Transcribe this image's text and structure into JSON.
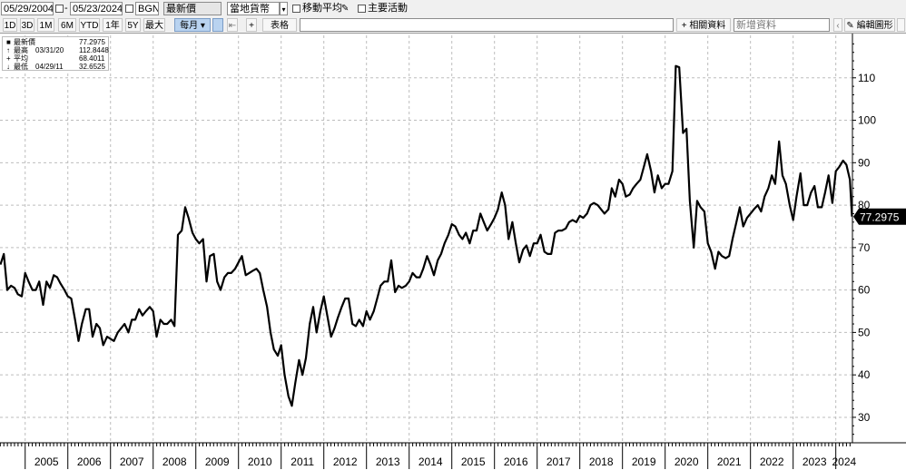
{
  "toolbar": {
    "start_date": "05/29/2004",
    "end_date": "05/23/2024",
    "currency": "BGN",
    "field": "最新價",
    "currency_mode": "當地貨幣",
    "moving_avg_label": "移動平均",
    "key_events_label": "主要活動",
    "periods": [
      "1D",
      "3D",
      "1M",
      "6M",
      "YTD",
      "1年",
      "5Y",
      "最大"
    ],
    "frequency": "每月",
    "table_label": "表格",
    "related_label": "相關資料",
    "new_data_placeholder": "新增資料",
    "edit_chart_label": "編輯圖形",
    "nav_add": "+"
  },
  "legend": [
    {
      "label": "最新價",
      "date": "",
      "value": "77.2975"
    },
    {
      "label": "最高",
      "date": "03/31/20",
      "value": "112.8448"
    },
    {
      "label": "平均",
      "date": "",
      "value": "68.4011"
    },
    {
      "label": "最低",
      "date": "04/29/11",
      "value": "32.6525"
    }
  ],
  "colors": {
    "line": "#000000",
    "grid": "#bdbdbd",
    "accent": "#000000"
  },
  "chart_data": {
    "type": "line",
    "title": "",
    "xlabel": "",
    "ylabel": "",
    "ylim": [
      24,
      120
    ],
    "xlim": [
      2004.41,
      2024.39
    ],
    "y_ticks": [
      30,
      40,
      50,
      60,
      70,
      80,
      90,
      100,
      110
    ],
    "x_tick_labels": [
      "2005",
      "2006",
      "2007",
      "2008",
      "2009",
      "2010",
      "2011",
      "2012",
      "2013",
      "2014",
      "2015",
      "2016",
      "2017",
      "2018",
      "2019",
      "2020",
      "2021",
      "2022",
      "2023",
      "2024"
    ],
    "last_value_label": "77.2975",
    "grid": true,
    "series": [
      {
        "values": [
          [
            2004.42,
            66
          ],
          [
            2004.5,
            68.5
          ],
          [
            2004.58,
            60
          ],
          [
            2004.67,
            61
          ],
          [
            2004.75,
            60.5
          ],
          [
            2004.83,
            59
          ],
          [
            2004.92,
            58.5
          ],
          [
            2005.0,
            64
          ],
          [
            2005.08,
            62
          ],
          [
            2005.17,
            60
          ],
          [
            2005.25,
            60
          ],
          [
            2005.33,
            62
          ],
          [
            2005.42,
            56.5
          ],
          [
            2005.5,
            62
          ],
          [
            2005.58,
            60.5
          ],
          [
            2005.67,
            63.5
          ],
          [
            2005.75,
            63
          ],
          [
            2005.83,
            61.5
          ],
          [
            2005.92,
            60
          ],
          [
            2006.0,
            58.5
          ],
          [
            2006.08,
            58
          ],
          [
            2006.17,
            53
          ],
          [
            2006.25,
            48
          ],
          [
            2006.33,
            52
          ],
          [
            2006.42,
            55.5
          ],
          [
            2006.5,
            55.5
          ],
          [
            2006.58,
            49
          ],
          [
            2006.67,
            52
          ],
          [
            2006.75,
            51
          ],
          [
            2006.83,
            47
          ],
          [
            2006.92,
            49
          ],
          [
            2007.0,
            48.5
          ],
          [
            2007.08,
            48
          ],
          [
            2007.17,
            50
          ],
          [
            2007.25,
            51
          ],
          [
            2007.33,
            52
          ],
          [
            2007.42,
            50
          ],
          [
            2007.5,
            53
          ],
          [
            2007.58,
            53
          ],
          [
            2007.67,
            55.5
          ],
          [
            2007.75,
            54
          ],
          [
            2007.83,
            55
          ],
          [
            2007.92,
            56
          ],
          [
            2008.0,
            55
          ],
          [
            2008.08,
            49
          ],
          [
            2008.17,
            53
          ],
          [
            2008.25,
            52
          ],
          [
            2008.33,
            52
          ],
          [
            2008.42,
            53
          ],
          [
            2008.5,
            51.5
          ],
          [
            2008.58,
            73
          ],
          [
            2008.67,
            74
          ],
          [
            2008.75,
            79.5
          ],
          [
            2008.83,
            77
          ],
          [
            2008.92,
            73.5
          ],
          [
            2009.0,
            72
          ],
          [
            2009.08,
            71
          ],
          [
            2009.17,
            72
          ],
          [
            2009.25,
            62
          ],
          [
            2009.33,
            68
          ],
          [
            2009.42,
            68.5
          ],
          [
            2009.5,
            62
          ],
          [
            2009.58,
            60
          ],
          [
            2009.67,
            63
          ],
          [
            2009.75,
            64
          ],
          [
            2009.83,
            64
          ],
          [
            2009.92,
            65
          ],
          [
            2010.0,
            66.5
          ],
          [
            2010.08,
            68
          ],
          [
            2010.17,
            63.5
          ],
          [
            2010.25,
            64
          ],
          [
            2010.33,
            64.5
          ],
          [
            2010.42,
            65
          ],
          [
            2010.5,
            64
          ],
          [
            2010.58,
            60
          ],
          [
            2010.67,
            56
          ],
          [
            2010.75,
            50
          ],
          [
            2010.83,
            46
          ],
          [
            2010.92,
            44.5
          ],
          [
            2011.0,
            47
          ],
          [
            2011.08,
            40
          ],
          [
            2011.17,
            35
          ],
          [
            2011.25,
            32.7
          ],
          [
            2011.33,
            38
          ],
          [
            2011.42,
            43.5
          ],
          [
            2011.5,
            40
          ],
          [
            2011.58,
            44
          ],
          [
            2011.67,
            52
          ],
          [
            2011.75,
            56
          ],
          [
            2011.83,
            50
          ],
          [
            2011.92,
            55
          ],
          [
            2012.0,
            58.5
          ],
          [
            2012.08,
            54
          ],
          [
            2012.17,
            49
          ],
          [
            2012.25,
            51
          ],
          [
            2012.33,
            53.5
          ],
          [
            2012.42,
            56
          ],
          [
            2012.5,
            58
          ],
          [
            2012.58,
            58
          ],
          [
            2012.67,
            52
          ],
          [
            2012.75,
            51.5
          ],
          [
            2012.83,
            53
          ],
          [
            2012.92,
            51.5
          ],
          [
            2013.0,
            55
          ],
          [
            2013.08,
            53
          ],
          [
            2013.17,
            55
          ],
          [
            2013.25,
            58
          ],
          [
            2013.33,
            61
          ],
          [
            2013.42,
            62
          ],
          [
            2013.5,
            62
          ],
          [
            2013.58,
            67
          ],
          [
            2013.67,
            59.5
          ],
          [
            2013.75,
            61
          ],
          [
            2013.83,
            60.5
          ],
          [
            2013.92,
            61
          ],
          [
            2014.0,
            62
          ],
          [
            2014.08,
            64
          ],
          [
            2014.17,
            63
          ],
          [
            2014.25,
            63
          ],
          [
            2014.33,
            65
          ],
          [
            2014.42,
            68
          ],
          [
            2014.5,
            66
          ],
          [
            2014.58,
            63.5
          ],
          [
            2014.67,
            67
          ],
          [
            2014.75,
            68.5
          ],
          [
            2014.83,
            71
          ],
          [
            2014.92,
            73
          ],
          [
            2015.0,
            75.5
          ],
          [
            2015.08,
            75
          ],
          [
            2015.17,
            73
          ],
          [
            2015.25,
            72
          ],
          [
            2015.33,
            73.5
          ],
          [
            2015.42,
            71
          ],
          [
            2015.5,
            74
          ],
          [
            2015.58,
            74
          ],
          [
            2015.67,
            78
          ],
          [
            2015.75,
            76
          ],
          [
            2015.83,
            74
          ],
          [
            2015.92,
            75.5
          ],
          [
            2016.0,
            77
          ],
          [
            2016.08,
            79
          ],
          [
            2016.17,
            83
          ],
          [
            2016.25,
            80
          ],
          [
            2016.33,
            72
          ],
          [
            2016.42,
            76
          ],
          [
            2016.5,
            71
          ],
          [
            2016.58,
            66.5
          ],
          [
            2016.67,
            69.5
          ],
          [
            2016.75,
            70.5
          ],
          [
            2016.83,
            68
          ],
          [
            2016.92,
            71
          ],
          [
            2017.0,
            71
          ],
          [
            2017.08,
            73
          ],
          [
            2017.17,
            69
          ],
          [
            2017.25,
            68.5
          ],
          [
            2017.33,
            68.5
          ],
          [
            2017.42,
            73.5
          ],
          [
            2017.5,
            74
          ],
          [
            2017.58,
            74
          ],
          [
            2017.67,
            74.5
          ],
          [
            2017.75,
            76
          ],
          [
            2017.83,
            76.5
          ],
          [
            2017.92,
            76
          ],
          [
            2018.0,
            77.5
          ],
          [
            2018.08,
            77
          ],
          [
            2018.17,
            78
          ],
          [
            2018.25,
            80
          ],
          [
            2018.33,
            80.5
          ],
          [
            2018.42,
            80
          ],
          [
            2018.5,
            79
          ],
          [
            2018.58,
            78
          ],
          [
            2018.67,
            79
          ],
          [
            2018.75,
            84
          ],
          [
            2018.83,
            82
          ],
          [
            2018.92,
            86
          ],
          [
            2019.0,
            85
          ],
          [
            2019.08,
            82
          ],
          [
            2019.17,
            82.5
          ],
          [
            2019.25,
            84
          ],
          [
            2019.33,
            85
          ],
          [
            2019.42,
            86
          ],
          [
            2019.5,
            89
          ],
          [
            2019.58,
            92
          ],
          [
            2019.67,
            88
          ],
          [
            2019.75,
            83
          ],
          [
            2019.83,
            87
          ],
          [
            2019.92,
            84
          ],
          [
            2020.0,
            85
          ],
          [
            2020.08,
            85
          ],
          [
            2020.17,
            88
          ],
          [
            2020.25,
            112.8
          ],
          [
            2020.33,
            112.5
          ],
          [
            2020.42,
            97
          ],
          [
            2020.5,
            98
          ],
          [
            2020.58,
            81
          ],
          [
            2020.67,
            70
          ],
          [
            2020.75,
            81
          ],
          [
            2020.83,
            79.5
          ],
          [
            2020.92,
            78.5
          ],
          [
            2021.0,
            71
          ],
          [
            2021.08,
            69
          ],
          [
            2021.17,
            65
          ],
          [
            2021.25,
            69
          ],
          [
            2021.33,
            68
          ],
          [
            2021.42,
            67.5
          ],
          [
            2021.5,
            68
          ],
          [
            2021.58,
            72
          ],
          [
            2021.67,
            76
          ],
          [
            2021.75,
            79.5
          ],
          [
            2021.83,
            75
          ],
          [
            2021.92,
            77
          ],
          [
            2022.0,
            78
          ],
          [
            2022.08,
            79
          ],
          [
            2022.17,
            80
          ],
          [
            2022.25,
            78.5
          ],
          [
            2022.33,
            82
          ],
          [
            2022.42,
            84
          ],
          [
            2022.5,
            87
          ],
          [
            2022.58,
            85
          ],
          [
            2022.67,
            95
          ],
          [
            2022.75,
            87
          ],
          [
            2022.83,
            85
          ],
          [
            2022.92,
            80
          ],
          [
            2023.0,
            76.5
          ],
          [
            2023.08,
            82
          ],
          [
            2023.17,
            87.5
          ],
          [
            2023.25,
            80
          ],
          [
            2023.33,
            80
          ],
          [
            2023.42,
            83
          ],
          [
            2023.5,
            84.5
          ],
          [
            2023.58,
            79.5
          ],
          [
            2023.67,
            79.5
          ],
          [
            2023.75,
            83
          ],
          [
            2023.83,
            87
          ],
          [
            2023.92,
            80.5
          ],
          [
            2024.0,
            88
          ],
          [
            2024.08,
            89
          ],
          [
            2024.17,
            90.5
          ],
          [
            2024.25,
            89.5
          ],
          [
            2024.33,
            86
          ],
          [
            2024.38,
            77.3
          ]
        ]
      }
    ]
  }
}
